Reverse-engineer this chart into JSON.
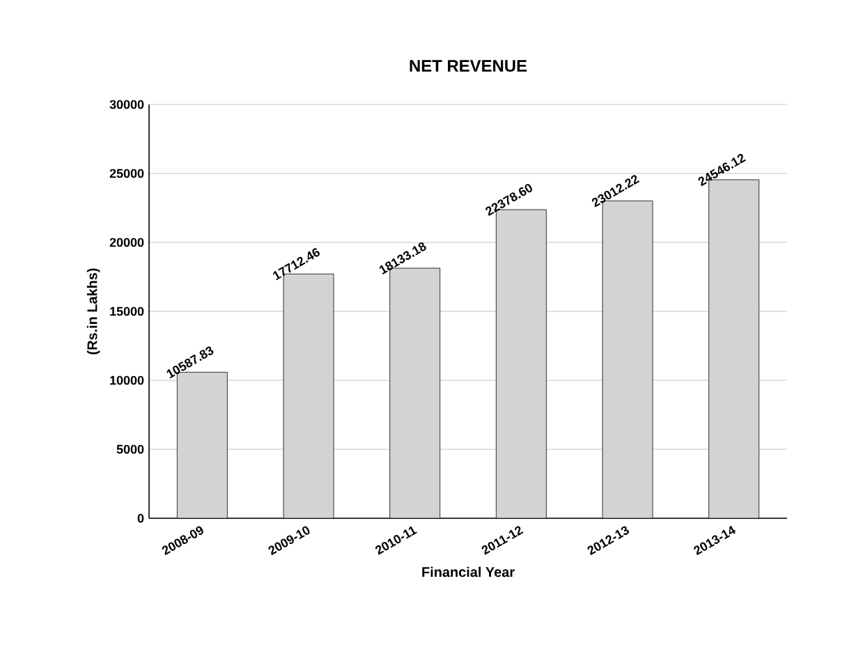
{
  "chart_data": {
    "type": "bar",
    "title": "NET REVENUE",
    "xlabel": "Financial Year",
    "ylabel": "(Rs.in Lakhs)",
    "categories": [
      "2008-09",
      "2009-10",
      "2010-11",
      "2011-12",
      "2012-13",
      "2013-14"
    ],
    "values": [
      10587.83,
      17712.46,
      18133.18,
      22378.6,
      23012.22,
      24546.12
    ],
    "value_labels": [
      "10587.83",
      "17712.46",
      "18133.18",
      "22378.60",
      "23012.22",
      "24546.12"
    ],
    "color": "#d1d3d4",
    "ylim": [
      0,
      30000
    ],
    "yticks": [
      0,
      5000,
      10000,
      15000,
      20000,
      25000,
      30000
    ],
    "grid": "y"
  }
}
